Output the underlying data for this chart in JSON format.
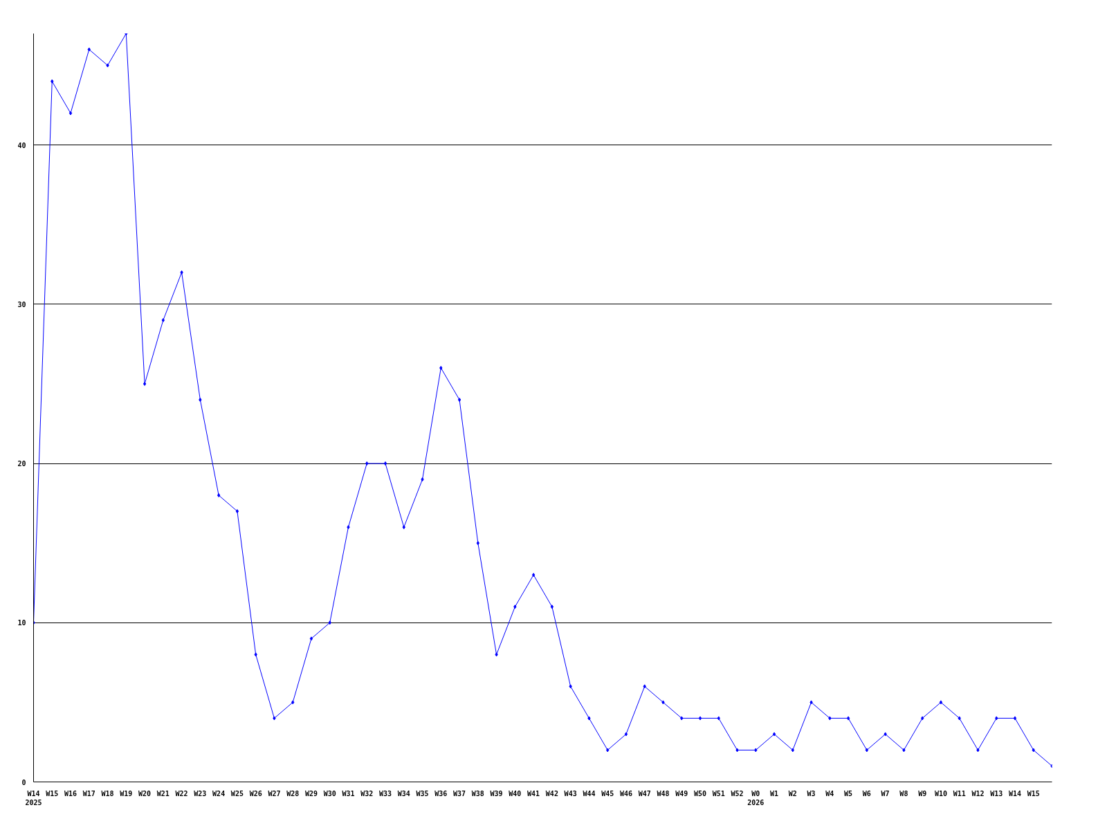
{
  "chart_data": {
    "type": "line",
    "categories": [
      "W14\n2025",
      "W15",
      "W16",
      "W17",
      "W18",
      "W19",
      "W20",
      "W21",
      "W22",
      "W23",
      "W24",
      "W25",
      "W26",
      "W27",
      "W28",
      "W29",
      "W30",
      "W31",
      "W32",
      "W33",
      "W34",
      "W35",
      "W36",
      "W37",
      "W38",
      "W39",
      "W40",
      "W41",
      "W42",
      "W43",
      "W44",
      "W45",
      "W46",
      "W47",
      "W48",
      "W49",
      "W50",
      "W51",
      "W52",
      "W0\n2026",
      "W1",
      "W2",
      "W3",
      "W4",
      "W5",
      "W6",
      "W7",
      "W8",
      "W9",
      "W10",
      "W11",
      "W12",
      "W13",
      "W14",
      "W15",
      null
    ],
    "series": [
      {
        "color": "#0000ff",
        "values": [
          10,
          44,
          42,
          46,
          45,
          47,
          25,
          29,
          32,
          24,
          18,
          17,
          8,
          4,
          5,
          9,
          10,
          16,
          20,
          20,
          16,
          19,
          26,
          24,
          15,
          8,
          11,
          13,
          11,
          6,
          4,
          2,
          3,
          6,
          5,
          4,
          4,
          4,
          2,
          2,
          3,
          2,
          5,
          4,
          4,
          2,
          3,
          2,
          4,
          5,
          4,
          2,
          4,
          4,
          2,
          1
        ]
      }
    ],
    "ylim": [
      0,
      47
    ],
    "yticks": [
      0,
      10,
      20,
      30,
      40
    ],
    "grid": "y",
    "marker": "diamond",
    "line_style": "solid"
  }
}
